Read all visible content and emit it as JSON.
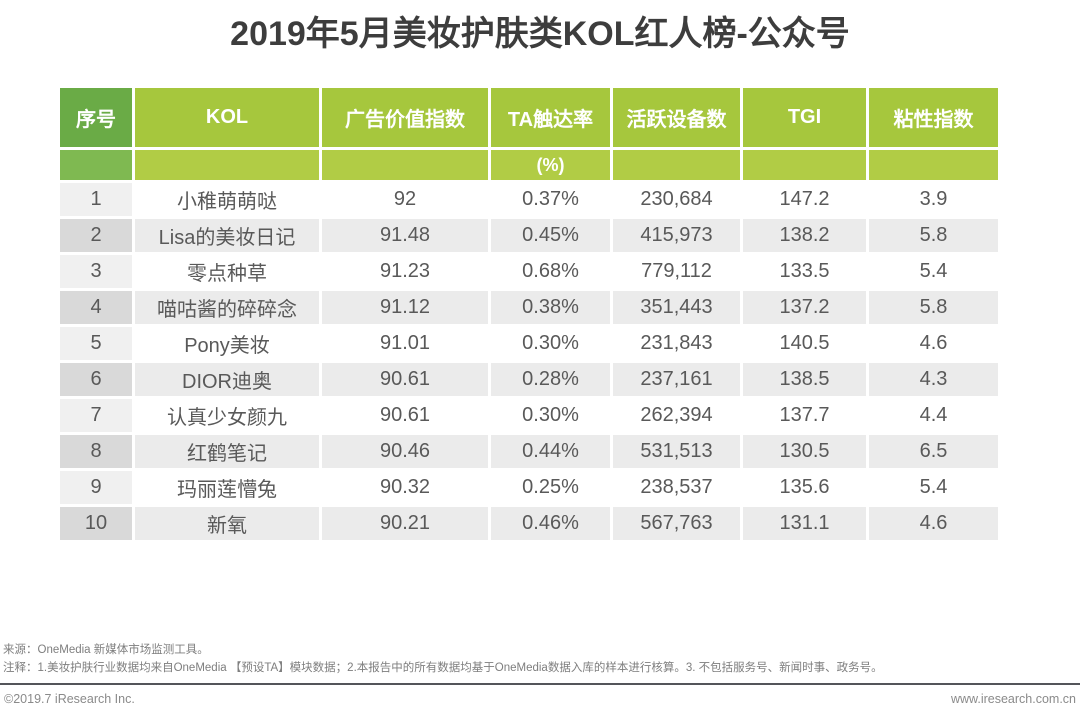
{
  "title": "2019年5月美妆护肤类KOL红人榜-公众号",
  "chart_data": {
    "type": "table",
    "title": "2019年5月美妆护肤类KOL红人榜-公众号",
    "columns": [
      {
        "label": "序号",
        "sub_label": ""
      },
      {
        "label": "KOL",
        "sub_label": ""
      },
      {
        "label": "广告价值指数",
        "sub_label": ""
      },
      {
        "label": "TA触达率",
        "sub_label": "(%)"
      },
      {
        "label": "活跃设备数",
        "sub_label": ""
      },
      {
        "label": "TGI",
        "sub_label": ""
      },
      {
        "label": "粘性指数",
        "sub_label": ""
      }
    ],
    "rows": [
      {
        "rank": "1",
        "kol": "小稚萌萌哒",
        "ad_value_index": "92",
        "ta_reach_rate": "0.37%",
        "active_devices": "230,684",
        "tgi": "147.2",
        "stickiness_index": "3.9"
      },
      {
        "rank": "2",
        "kol": "Lisa的美妆日记",
        "ad_value_index": "91.48",
        "ta_reach_rate": "0.45%",
        "active_devices": "415,973",
        "tgi": "138.2",
        "stickiness_index": "5.8"
      },
      {
        "rank": "3",
        "kol": "零点种草",
        "ad_value_index": "91.23",
        "ta_reach_rate": "0.68%",
        "active_devices": "779,112",
        "tgi": "133.5",
        "stickiness_index": "5.4"
      },
      {
        "rank": "4",
        "kol": "喵咕酱的碎碎念",
        "ad_value_index": "91.12",
        "ta_reach_rate": "0.38%",
        "active_devices": "351,443",
        "tgi": "137.2",
        "stickiness_index": "5.8"
      },
      {
        "rank": "5",
        "kol": "Pony美妆",
        "ad_value_index": "91.01",
        "ta_reach_rate": "0.30%",
        "active_devices": "231,843",
        "tgi": "140.5",
        "stickiness_index": "4.6"
      },
      {
        "rank": "6",
        "kol": "DIOR迪奥",
        "ad_value_index": "90.61",
        "ta_reach_rate": "0.28%",
        "active_devices": "237,161",
        "tgi": "138.5",
        "stickiness_index": "4.3"
      },
      {
        "rank": "7",
        "kol": "认真少女颜九",
        "ad_value_index": "90.61",
        "ta_reach_rate": "0.30%",
        "active_devices": "262,394",
        "tgi": "137.7",
        "stickiness_index": "4.4"
      },
      {
        "rank": "8",
        "kol": "红鹤笔记",
        "ad_value_index": "90.46",
        "ta_reach_rate": "0.44%",
        "active_devices": "531,513",
        "tgi": "130.5",
        "stickiness_index": "6.5"
      },
      {
        "rank": "9",
        "kol": "玛丽莲懵兔",
        "ad_value_index": "90.32",
        "ta_reach_rate": "0.25%",
        "active_devices": "238,537",
        "tgi": "135.6",
        "stickiness_index": "5.4"
      },
      {
        "rank": "10",
        "kol": "新氧",
        "ad_value_index": "90.21",
        "ta_reach_rate": "0.46%",
        "active_devices": "567,763",
        "tgi": "131.1",
        "stickiness_index": "4.6"
      }
    ]
  },
  "footer": {
    "source": "来源：OneMedia 新媒体市场监测工具。",
    "notes": "注释：1.美妆护肤行业数据均来自OneMedia 【预设TA】模块数据；2.本报告中的所有数据均基于OneMedia数据入库的样本进行核算。3. 不包括服务号、新闻时事、政务号。",
    "copyright": "©2019.7 iResearch Inc.",
    "website": "www.iresearch.com.cn"
  },
  "colors": {
    "header_rank_bg": "#6aab46",
    "header_bg": "#a6c73d",
    "subheader_rank_bg": "#7fb951",
    "subheader_bg": "#b1cc45",
    "row_odd_bg": "#ffffff",
    "row_even_bg": "#ebebeb",
    "rank_odd_bg": "#f0f0f0",
    "rank_even_bg": "#d9d9d9",
    "body_text": "#595959",
    "title_text": "#3d3d3d",
    "footnote_text": "#7e7e7e"
  }
}
